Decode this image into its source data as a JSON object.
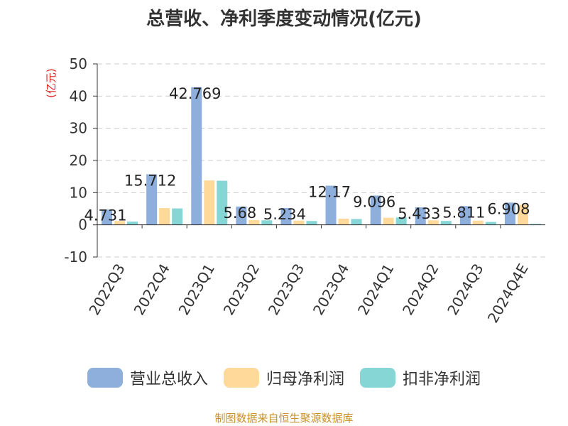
{
  "chart_data": {
    "type": "bar",
    "title": "总营收、净利季度变动情况(亿元)",
    "ylabel": "(亿元)",
    "ylim": [
      -10,
      50
    ],
    "yticks": [
      -10,
      0,
      10,
      20,
      30,
      40,
      50
    ],
    "grid": true,
    "legend_position": "bottom",
    "categories": [
      "2022Q3",
      "2022Q4",
      "2023Q1",
      "2023Q2",
      "2023Q3",
      "2023Q4",
      "2024Q1",
      "2024Q2",
      "2024Q3",
      "2024Q4E"
    ],
    "series": [
      {
        "name": "营业总收入",
        "color": "#8eaedc",
        "values": [
          4.731,
          15.712,
          42.769,
          5.68,
          5.234,
          12.17,
          9.096,
          5.433,
          5.811,
          6.908
        ]
      },
      {
        "name": "归母净利润",
        "color": "#ffd999",
        "values": [
          1.2,
          5.2,
          13.8,
          1.5,
          1.3,
          1.9,
          2.2,
          1.4,
          1.3,
          6.2
        ]
      },
      {
        "name": "扣非净利润",
        "color": "#86d6d6",
        "values": [
          1.0,
          5.1,
          13.7,
          1.4,
          1.2,
          1.8,
          2.3,
          1.2,
          0.9,
          0.3
        ]
      }
    ],
    "data_labels": [
      "4.731",
      "15.712",
      "42.769",
      "5.68",
      "5.234",
      "12.17",
      "9.096",
      "5.433",
      "5.811",
      "6.908"
    ]
  },
  "footer": {
    "source": "制图数据来自恒生聚源数据库"
  }
}
